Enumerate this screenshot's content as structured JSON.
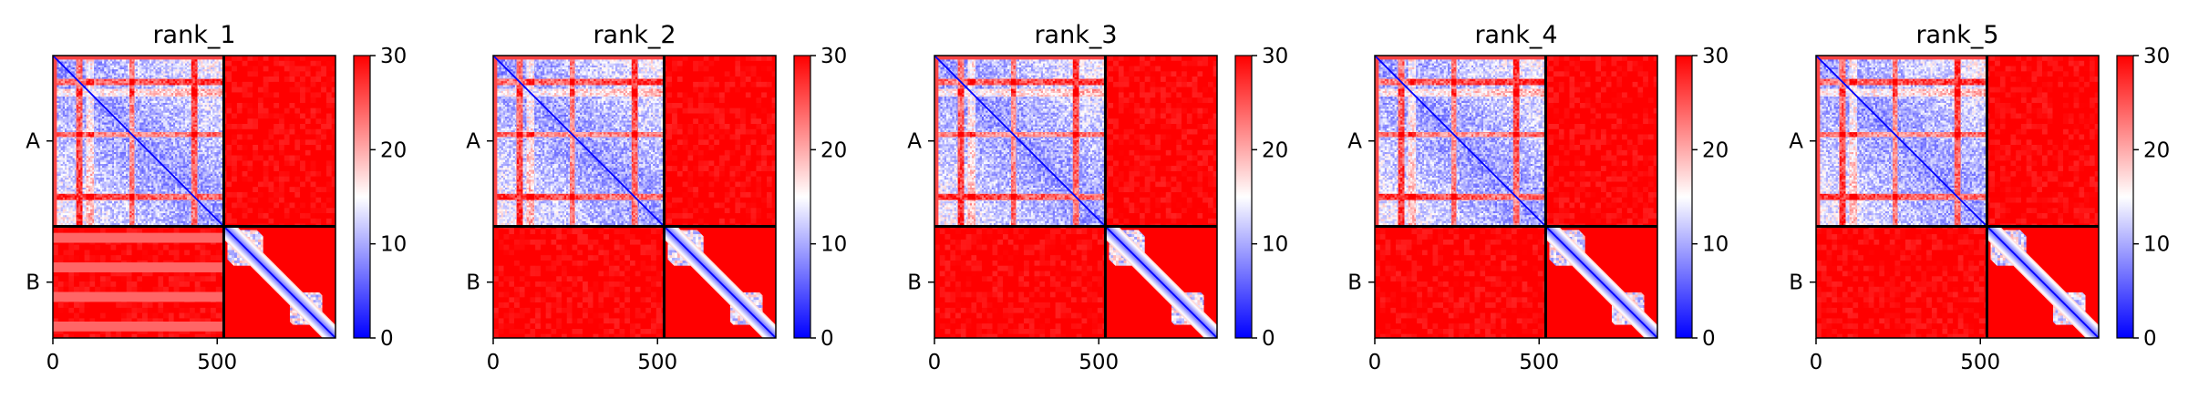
{
  "chart_data": {
    "type": "heatmap",
    "colormap": [
      "#0000ff",
      "#ffffff",
      "#ff0000"
    ],
    "grid": false,
    "legend": "colorbar-right",
    "xlim": [
      0,
      860
    ],
    "x_ticks": [
      0,
      500
    ],
    "chain_boundary": 520,
    "chains": [
      {
        "label": "A",
        "start": 0,
        "end": 520
      },
      {
        "label": "B",
        "start": 520,
        "end": 860
      }
    ],
    "colorbar": {
      "min": 0,
      "max": 30,
      "ticks": [
        0,
        10,
        20,
        30
      ]
    },
    "panels": [
      {
        "title": "rank_1"
      },
      {
        "title": "rank_2"
      },
      {
        "title": "rank_3"
      },
      {
        "title": "rank_4"
      },
      {
        "title": "rank_5"
      }
    ]
  }
}
